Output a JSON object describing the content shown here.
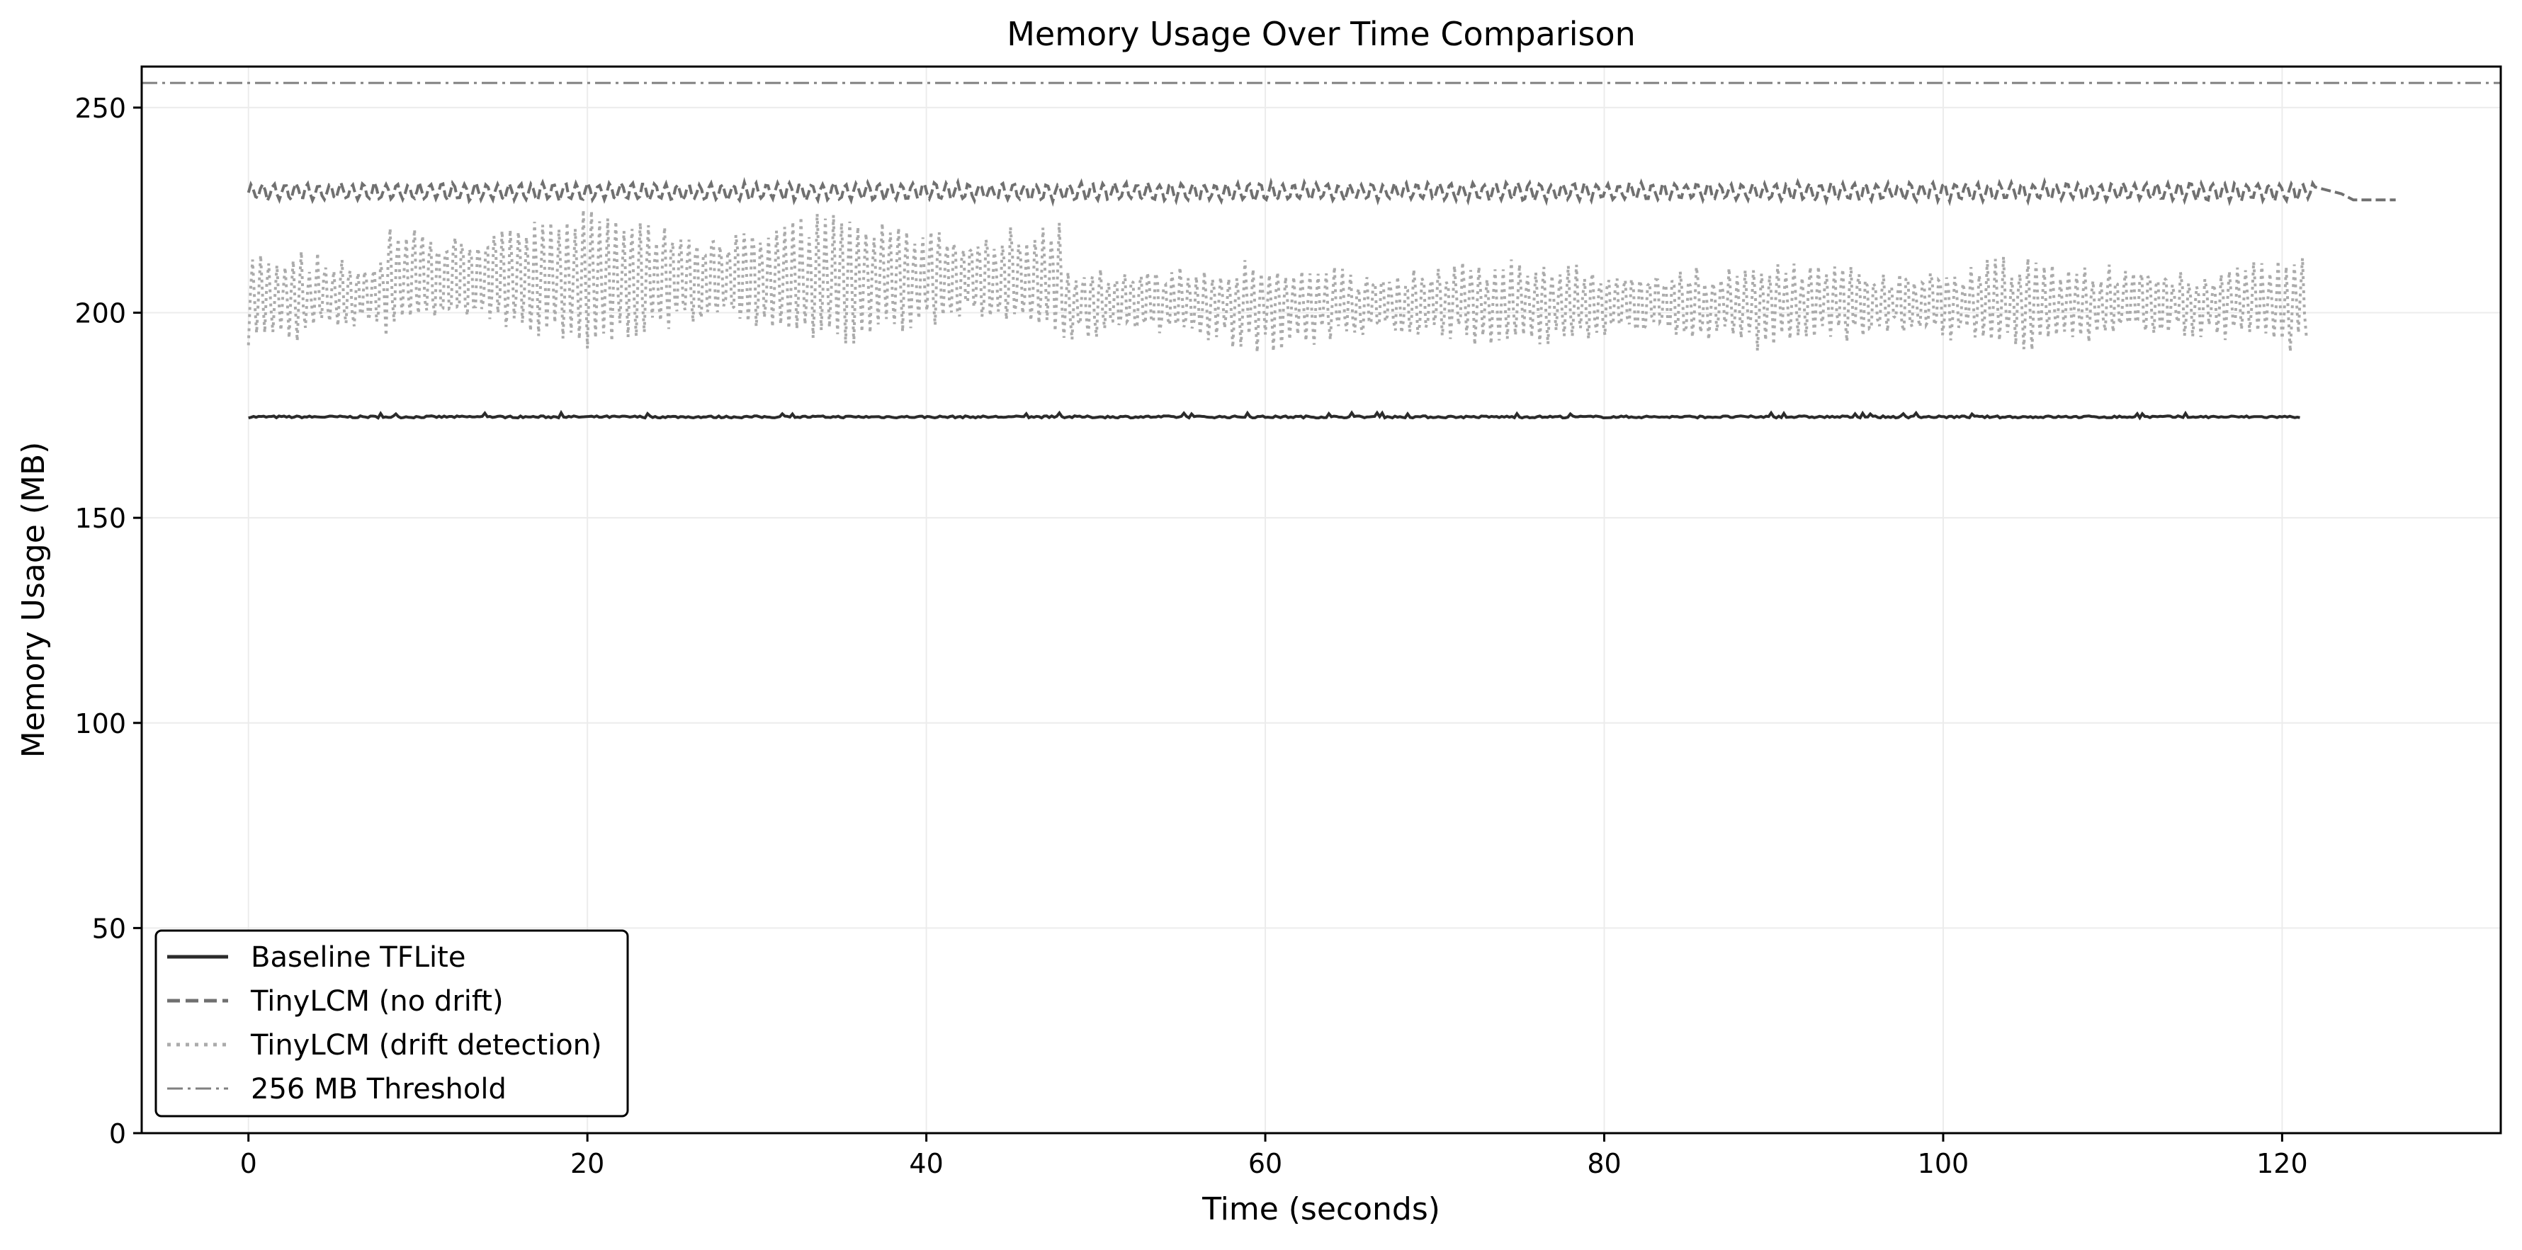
{
  "chart_data": {
    "type": "line",
    "title": "Memory Usage Over Time Comparison",
    "xlabel": "Time (seconds)",
    "ylabel": "Memory Usage (MB)",
    "xlim": [
      -6.3,
      132.9
    ],
    "ylim": [
      0,
      260
    ],
    "x_ticks": [
      0,
      20,
      40,
      60,
      80,
      100,
      120
    ],
    "y_ticks": [
      0,
      50,
      100,
      150,
      200,
      250
    ],
    "grid": true,
    "legend_position": "lower-left",
    "series": [
      {
        "name": "Baseline TFLite",
        "style": "solid",
        "color": "#2b2b2b",
        "range": {
          "x": [
            0,
            121.2
          ],
          "y_min": 174.2,
          "y_max": 175.6,
          "typical": 174.6
        }
      },
      {
        "name": "TinyLCM (no drift)",
        "style": "dashed",
        "color": "#707070",
        "range": {
          "x": [
            0,
            126.7
          ],
          "y_min": 227.0,
          "y_max": 232.0,
          "typical": 229.5,
          "end_value": 227.5
        }
      },
      {
        "name": "TinyLCM (drift detection)",
        "style": "dotted",
        "color": "#ababab",
        "segments": [
          {
            "x": [
              0,
              8
            ],
            "y_min": 191,
            "y_max": 218
          },
          {
            "x": [
              8,
              48
            ],
            "y_min": 191,
            "y_max": 226
          },
          {
            "x": [
              48,
              121.5
            ],
            "y_min": 190,
            "y_max": 215
          }
        ]
      },
      {
        "name": "256 MB Threshold",
        "style": "dashdot",
        "color": "#808080",
        "constant": 256
      }
    ]
  }
}
